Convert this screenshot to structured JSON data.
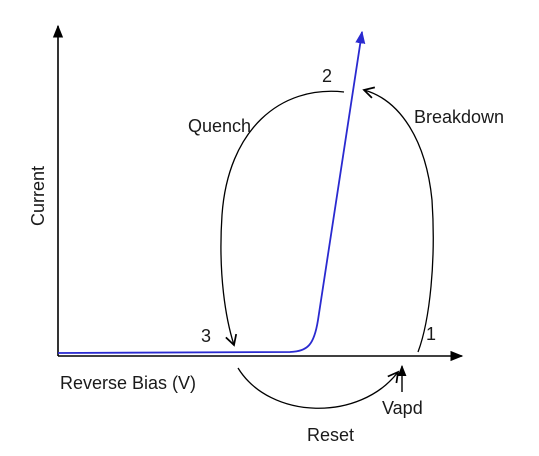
{
  "labels": {
    "y_axis": "Current",
    "x_axis": "Reverse Bias (V)",
    "quench": "Quench",
    "breakdown": "Breakdown",
    "reset": "Reset",
    "vapd": "Vapd",
    "point_1": "1",
    "point_2": "2",
    "point_3": "3"
  },
  "colors": {
    "iv_curve": "#2a2ad0",
    "axes": "#000000",
    "arcs": "#000000"
  }
}
